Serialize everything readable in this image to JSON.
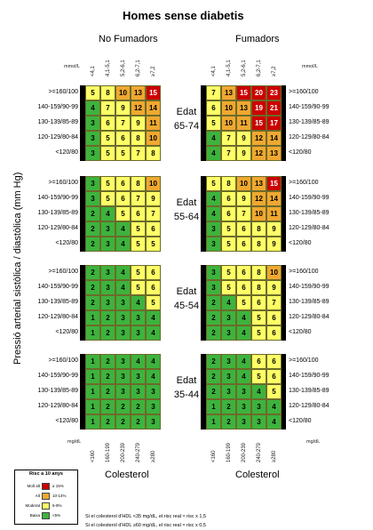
{
  "title": "Homes sense diabetis",
  "headers": {
    "left": "No Fumadors",
    "right": "Fumadors"
  },
  "units": {
    "mmol": "mmol/L",
    "mgdl": "mg/dL"
  },
  "chol_mmol": [
    "<4,1",
    "4,1-5,1",
    "5,2-6,1",
    "6,2-7,1",
    "≥7,2"
  ],
  "chol_mgdl": [
    "<160",
    "160-199",
    "200-239",
    "240-279",
    "≥280"
  ],
  "bp_rows": [
    ">=160/100",
    "140-159/90-99",
    "130-139/85-89",
    "120-129/80-84",
    "<120/80"
  ],
  "y_axis": "Pressió arterial sistòlica / diastòlica (mm Hg)",
  "x_axis": "Colesterol",
  "colors": {
    "low": "#3db33d",
    "moderate": "#ffff66",
    "high": "#f0a830",
    "very_high": "#cc0000"
  },
  "chart_data": {
    "type": "heatmap",
    "title": "Homes sense diabetis",
    "xlabel": "Colesterol",
    "ylabel": "Pressió arterial sistòlica / diastòlica (mm Hg)",
    "columns": [
      "<160",
      "160-199",
      "200-239",
      "240-279",
      "≥280"
    ],
    "rows": [
      ">=160/100",
      "140-159/90-99",
      "130-139/85-89",
      "120-129/80-84",
      "<120/80"
    ],
    "panels": [
      {
        "age": "Edat\n65-74",
        "smoker": "No Fumadors",
        "values": [
          [
            5,
            8,
            10,
            13,
            15
          ],
          [
            4,
            7,
            9,
            12,
            14
          ],
          [
            3,
            6,
            7,
            9,
            11
          ],
          [
            3,
            5,
            6,
            8,
            10
          ],
          [
            3,
            5,
            5,
            7,
            8
          ]
        ]
      },
      {
        "age": "Edat\n65-74",
        "smoker": "Fumadors",
        "values": [
          [
            7,
            13,
            15,
            20,
            23
          ],
          [
            6,
            10,
            13,
            19,
            21
          ],
          [
            5,
            10,
            11,
            15,
            17
          ],
          [
            4,
            7,
            9,
            12,
            14
          ],
          [
            4,
            7,
            9,
            12,
            13
          ]
        ]
      },
      {
        "age": "Edat\n55-64",
        "smoker": "No Fumadors",
        "values": [
          [
            3,
            5,
            6,
            8,
            10
          ],
          [
            3,
            5,
            6,
            7,
            9
          ],
          [
            2,
            4,
            5,
            6,
            7
          ],
          [
            2,
            3,
            4,
            5,
            6
          ],
          [
            2,
            3,
            4,
            5,
            5
          ]
        ]
      },
      {
        "age": "Edat\n55-64",
        "smoker": "Fumadors",
        "values": [
          [
            5,
            8,
            10,
            13,
            15
          ],
          [
            4,
            6,
            9,
            12,
            14
          ],
          [
            4,
            6,
            7,
            10,
            11
          ],
          [
            3,
            5,
            6,
            8,
            9
          ],
          [
            3,
            5,
            6,
            8,
            9
          ]
        ]
      },
      {
        "age": "Edat\n45-54",
        "smoker": "No Fumadors",
        "values": [
          [
            2,
            3,
            4,
            5,
            6
          ],
          [
            2,
            3,
            4,
            5,
            6
          ],
          [
            2,
            3,
            3,
            4,
            5
          ],
          [
            1,
            2,
            3,
            3,
            4
          ],
          [
            1,
            2,
            3,
            3,
            4
          ]
        ]
      },
      {
        "age": "Edat\n45-54",
        "smoker": "Fumadors",
        "values": [
          [
            3,
            5,
            6,
            8,
            10
          ],
          [
            3,
            5,
            6,
            8,
            9
          ],
          [
            2,
            4,
            5,
            6,
            7
          ],
          [
            2,
            3,
            4,
            5,
            6
          ],
          [
            2,
            3,
            4,
            5,
            6
          ]
        ]
      },
      {
        "age": "Edat\n35-44",
        "smoker": "No Fumadors",
        "values": [
          [
            1,
            2,
            3,
            4,
            4
          ],
          [
            1,
            2,
            3,
            3,
            4
          ],
          [
            1,
            2,
            3,
            3,
            3
          ],
          [
            1,
            2,
            2,
            2,
            3
          ],
          [
            1,
            2,
            2,
            2,
            3
          ]
        ]
      },
      {
        "age": "Edat\n35-44",
        "smoker": "Fumadors",
        "values": [
          [
            2,
            3,
            4,
            6,
            6
          ],
          [
            2,
            3,
            4,
            5,
            6
          ],
          [
            2,
            3,
            3,
            4,
            5
          ],
          [
            1,
            2,
            3,
            3,
            4
          ],
          [
            1,
            2,
            3,
            3,
            4
          ]
        ]
      }
    ],
    "legend": {
      "title": "Risc a 10 anys",
      "items": [
        {
          "label": "Molt alt",
          "range": "≥ 15%",
          "color": "#cc0000"
        },
        {
          "label": "Alt",
          "range": "10-14%",
          "color": "#f0a830"
        },
        {
          "label": "Moderat",
          "range": "5-9%",
          "color": "#ffff66"
        },
        {
          "label": "Baixa",
          "range": "<5%",
          "color": "#3db33d"
        }
      ]
    }
  },
  "footnotes": [
    "Si el colesterol d'HDL <35 mg/dL, el risc real ≈ risc x 1,5",
    "Si el colesterol d'HDL ≥60 mg/dL, el risc real ≈ risc x 0,5"
  ]
}
